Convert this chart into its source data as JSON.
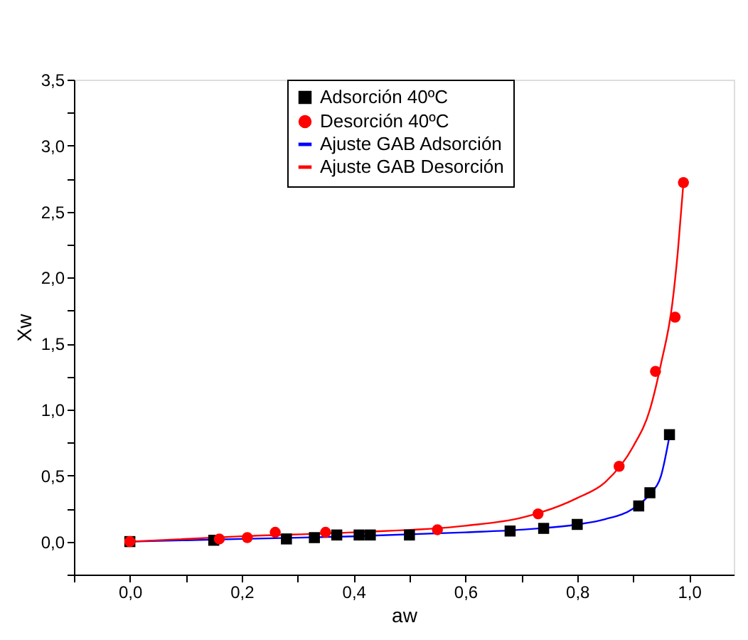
{
  "chart_data": {
    "type": "scatter",
    "xlabel": "aw",
    "ylabel": "Xw",
    "xlim": [
      -0.1,
      1.08
    ],
    "ylim": [
      -0.25,
      3.5
    ],
    "xticks": [
      {
        "value": -0.1,
        "label": null
      },
      {
        "value": 0,
        "label": "0,0"
      },
      {
        "value": 0.1,
        "label": null
      },
      {
        "value": 0.2,
        "label": "0,2"
      },
      {
        "value": 0.3,
        "label": null
      },
      {
        "value": 0.4,
        "label": "0,4"
      },
      {
        "value": 0.5,
        "label": null
      },
      {
        "value": 0.6,
        "label": "0,6"
      },
      {
        "value": 0.7,
        "label": null
      },
      {
        "value": 0.8,
        "label": "0,8"
      },
      {
        "value": 0.9,
        "label": null
      },
      {
        "value": 1.0,
        "label": "1,0"
      }
    ],
    "yticks": [
      {
        "value": -0.25,
        "label": null
      },
      {
        "value": 0,
        "label": "0,0"
      },
      {
        "value": 0.25,
        "label": null
      },
      {
        "value": 0.5,
        "label": "0,5"
      },
      {
        "value": 0.75,
        "label": null
      },
      {
        "value": 1.0,
        "label": "1,0"
      },
      {
        "value": 1.25,
        "label": null
      },
      {
        "value": 1.5,
        "label": "1,5"
      },
      {
        "value": 1.75,
        "label": null
      },
      {
        "value": 2.0,
        "label": "2,0"
      },
      {
        "value": 2.25,
        "label": null
      },
      {
        "value": 2.5,
        "label": "2,5"
      },
      {
        "value": 2.75,
        "label": null
      },
      {
        "value": 3.0,
        "label": "3,0"
      },
      {
        "value": 3.25,
        "label": null
      },
      {
        "value": 3.5,
        "label": "3,5"
      }
    ],
    "grid": false,
    "legend": "top",
    "series": [
      {
        "name": "Adsorción 40ºC",
        "type": "scatter",
        "marker": "square",
        "color": "#000000",
        "x": [
          0,
          0.15,
          0.28,
          0.33,
          0.37,
          0.41,
          0.43,
          0.5,
          0.68,
          0.74,
          0.8,
          0.91,
          0.93,
          0.965
        ],
        "values": [
          0,
          0.01,
          0.02,
          0.03,
          0.05,
          0.05,
          0.05,
          0.05,
          0.08,
          0.1,
          0.13,
          0.27,
          0.37,
          0.81
        ]
      },
      {
        "name": "Desorción 40ºC",
        "type": "scatter",
        "marker": "circle",
        "color": "#ff0000",
        "x": [
          0,
          0.16,
          0.21,
          0.26,
          0.35,
          0.55,
          0.73,
          0.875,
          0.94,
          0.975,
          0.99
        ],
        "values": [
          0,
          0.02,
          0.03,
          0.07,
          0.07,
          0.09,
          0.21,
          0.57,
          1.29,
          1.7,
          2.72
        ]
      },
      {
        "name": "Ajuste GAB Adsorción",
        "type": "line",
        "color": "#0000ff",
        "x": [
          0,
          0.2,
          0.4,
          0.6,
          0.7,
          0.8,
          0.85,
          0.9,
          0.93,
          0.95,
          0.965
        ],
        "values": [
          0,
          0.02,
          0.04,
          0.07,
          0.09,
          0.13,
          0.17,
          0.25,
          0.36,
          0.5,
          0.8
        ]
      },
      {
        "name": "Ajuste GAB Desorción",
        "type": "line",
        "color": "#ff0000",
        "x": [
          0,
          0.2,
          0.4,
          0.6,
          0.7,
          0.8,
          0.85,
          0.9,
          0.93,
          0.95,
          0.97,
          0.98,
          0.99
        ],
        "values": [
          0,
          0.04,
          0.07,
          0.12,
          0.18,
          0.33,
          0.45,
          0.72,
          1.0,
          1.35,
          1.8,
          2.2,
          2.72
        ]
      }
    ]
  }
}
